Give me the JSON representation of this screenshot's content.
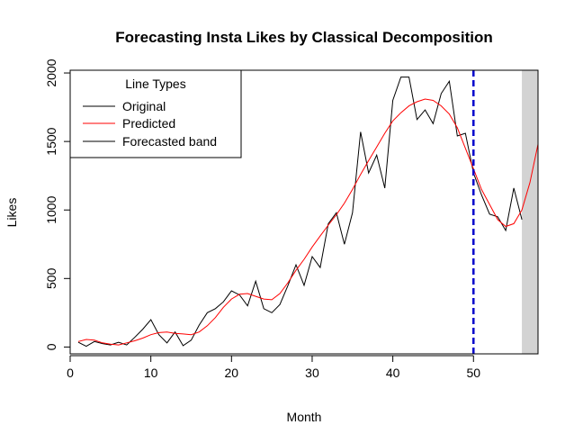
{
  "chart_data": {
    "type": "line",
    "title": "Forecasting Insta Likes by Classical Decomposition",
    "xlabel": "Month",
    "ylabel": "Likes",
    "xlim": [
      0,
      58
    ],
    "ylim": [
      -50,
      2020
    ],
    "x_ticks": [
      0,
      10,
      20,
      30,
      40,
      50
    ],
    "y_ticks": [
      0,
      500,
      1000,
      1500,
      2000
    ],
    "grid": false,
    "legend": {
      "title": "Line Types",
      "position": "top-left",
      "entries": [
        {
          "label": "Original",
          "color": "#000000"
        },
        {
          "label": "Predicted",
          "color": "#ff0000"
        },
        {
          "label": "Forecasted band",
          "color": "#000000"
        }
      ]
    },
    "series": [
      {
        "name": "Original",
        "color": "#000000",
        "x": [
          1,
          2,
          3,
          4,
          5,
          6,
          7,
          8,
          9,
          10,
          11,
          12,
          13,
          14,
          15,
          16,
          17,
          18,
          19,
          20,
          21,
          22,
          23,
          24,
          25,
          26,
          27,
          28,
          29,
          30,
          31,
          32,
          33,
          34,
          35,
          36,
          37,
          38,
          39,
          40,
          41,
          42,
          43,
          44,
          45,
          46,
          47,
          48,
          49,
          50,
          51,
          52,
          53,
          54,
          55,
          56,
          57
        ],
        "values": [
          35,
          5,
          40,
          25,
          15,
          35,
          15,
          70,
          130,
          200,
          90,
          30,
          110,
          10,
          50,
          160,
          250,
          280,
          330,
          410,
          380,
          300,
          480,
          280,
          250,
          310,
          450,
          600,
          450,
          660,
          580,
          900,
          980,
          750,
          980,
          1570,
          1270,
          1400,
          1160,
          1800,
          1970,
          1970,
          1660,
          1730,
          1630,
          1850,
          1940,
          1540,
          1560,
          1270,
          1110,
          970,
          950,
          850,
          1160,
          930,
          null
        ]
      },
      {
        "name": "Predicted",
        "color": "#ff0000",
        "x": [
          1,
          2,
          3,
          4,
          5,
          6,
          7,
          8,
          9,
          10,
          11,
          12,
          13,
          14,
          15,
          16,
          17,
          18,
          19,
          20,
          21,
          22,
          23,
          24,
          25,
          26,
          27,
          28,
          29,
          30,
          31,
          32,
          33,
          34,
          35,
          36,
          37,
          38,
          39,
          40,
          41,
          42,
          43,
          44,
          45,
          46,
          47,
          48,
          49,
          50,
          51,
          52,
          53,
          54,
          55,
          56,
          57,
          58
        ],
        "values": [
          40,
          55,
          50,
          30,
          20,
          15,
          30,
          45,
          65,
          90,
          105,
          110,
          100,
          95,
          90,
          110,
          155,
          215,
          290,
          350,
          385,
          390,
          370,
          350,
          345,
          390,
          470,
          560,
          640,
          730,
          810,
          890,
          965,
          1050,
          1150,
          1260,
          1360,
          1460,
          1560,
          1650,
          1710,
          1760,
          1790,
          1810,
          1800,
          1760,
          1700,
          1600,
          1450,
          1300,
          1150,
          1040,
          930,
          880,
          900,
          1000,
          1200,
          1480
        ]
      }
    ],
    "vertical_line": {
      "x": 50,
      "color": "#0000cc",
      "style": "dashed"
    },
    "forecast_band": {
      "x_start": 56,
      "x_end": 58,
      "color": "#d3d3d3"
    }
  }
}
